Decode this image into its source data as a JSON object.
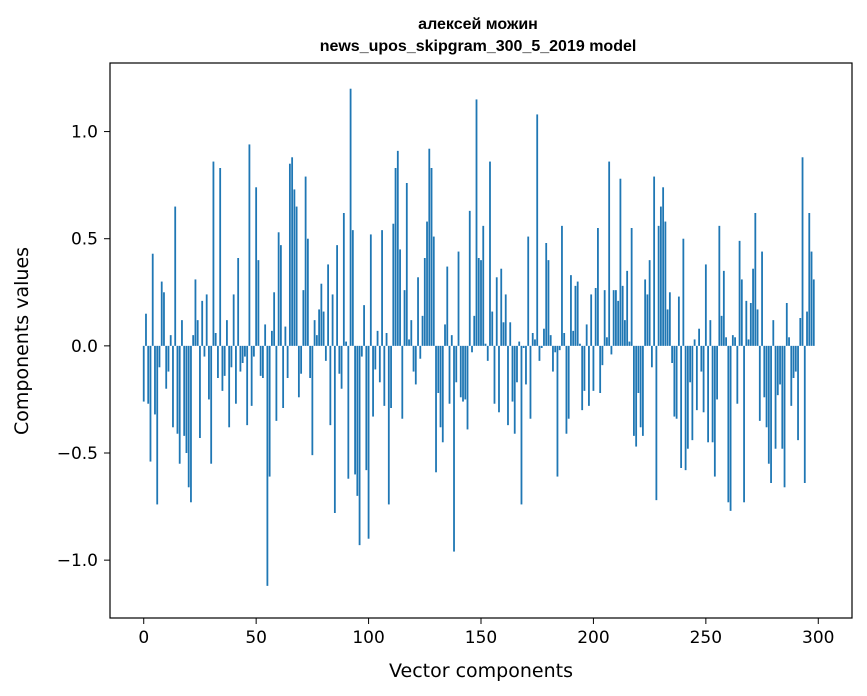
{
  "chart_data": {
    "type": "bar",
    "title": "алексей можин",
    "subtitle": "news_upos_skipgram_300_5_2019 model",
    "xlabel": "Vector components",
    "ylabel": "Components values",
    "xlim": [
      -15,
      315
    ],
    "ylim": [
      -1.27,
      1.32
    ],
    "xticks": [
      0,
      50,
      100,
      150,
      200,
      250,
      300
    ],
    "yticks": [
      -1.0,
      -0.5,
      0.0,
      0.5,
      1.0
    ],
    "bar_color": "#1f77b4",
    "grid": false,
    "x": "0..299 (index of each value)",
    "values": [
      -0.26,
      0.15,
      -0.27,
      -0.54,
      0.43,
      -0.32,
      -0.74,
      -0.1,
      0.3,
      0.25,
      -0.2,
      -0.12,
      0.05,
      -0.38,
      0.65,
      -0.41,
      -0.55,
      0.12,
      -0.42,
      -0.5,
      -0.66,
      -0.73,
      0.05,
      0.31,
      0.12,
      -0.43,
      0.21,
      -0.05,
      0.24,
      -0.25,
      -0.55,
      0.86,
      0.06,
      -0.15,
      0.83,
      -0.21,
      -0.14,
      0.12,
      -0.38,
      -0.1,
      0.24,
      -0.27,
      0.41,
      -0.12,
      -0.08,
      -0.05,
      -0.37,
      0.94,
      -0.28,
      -0.05,
      0.74,
      0.4,
      -0.14,
      -0.15,
      0.1,
      -1.12,
      -0.61,
      0.07,
      0.25,
      -0.35,
      0.53,
      0.47,
      -0.29,
      0.09,
      -0.15,
      0.85,
      0.88,
      0.73,
      0.65,
      -0.24,
      -0.13,
      0.26,
      0.79,
      0.5,
      -0.15,
      -0.51,
      0.12,
      0.05,
      0.17,
      0.29,
      0.16,
      -0.07,
      0.38,
      -0.37,
      0.24,
      -0.78,
      0.47,
      -0.13,
      -0.2,
      0.62,
      0.02,
      -0.62,
      1.2,
      0.54,
      -0.6,
      -0.7,
      -0.93,
      -0.05,
      0.19,
      -0.58,
      -0.9,
      0.52,
      -0.33,
      -0.11,
      0.07,
      -0.17,
      0.54,
      -0.28,
      0.06,
      -0.74,
      -0.29,
      0.57,
      0.83,
      0.91,
      0.45,
      -0.34,
      0.26,
      0.76,
      0.03,
      0.12,
      -0.12,
      -0.18,
      0.32,
      -0.06,
      0.14,
      0.41,
      0.58,
      0.92,
      0.83,
      0.51,
      -0.59,
      -0.22,
      -0.38,
      -0.45,
      0.1,
      0.37,
      -0.27,
      0.05,
      -0.96,
      -0.17,
      0.44,
      -0.24,
      -0.26,
      -0.25,
      -0.39,
      0.63,
      -0.03,
      0.14,
      1.15,
      0.41,
      0.4,
      0.56,
      0.01,
      -0.07,
      0.86,
      0.16,
      -0.27,
      0.32,
      -0.31,
      0.36,
      0.11,
      0.24,
      -0.37,
      0.11,
      -0.26,
      -0.41,
      -0.17,
      0.02,
      -0.74,
      -0.01,
      -0.18,
      0.51,
      -0.34,
      0.06,
      0.03,
      1.08,
      -0.07,
      -0.01,
      0.08,
      0.48,
      0.4,
      0.05,
      -0.12,
      -0.03,
      -0.61,
      -0.02,
      0.56,
      0.06,
      -0.41,
      -0.34,
      0.33,
      0.07,
      0.28,
      0.3,
      0.01,
      -0.3,
      -0.21,
      0.1,
      -0.28,
      0.24,
      -0.21,
      0.27,
      0.55,
      -0.22,
      -0.09,
      0.26,
      0.04,
      0.86,
      -0.04,
      0.26,
      0.26,
      0.21,
      0.78,
      0.28,
      0.12,
      0.35,
      0.02,
      0.55,
      -0.42,
      -0.47,
      -0.22,
      -0.38,
      -0.42,
      0.31,
      0.24,
      0.4,
      -0.1,
      0.79,
      -0.72,
      0.56,
      0.65,
      0.74,
      0.58,
      0.17,
      0.25,
      -0.08,
      -0.33,
      -0.34,
      0.23,
      -0.57,
      0.5,
      -0.58,
      -0.48,
      -0.17,
      -0.44,
      0.03,
      -0.3,
      0.08,
      -0.12,
      -0.31,
      0.38,
      -0.45,
      0.12,
      -0.45,
      -0.61,
      -0.25,
      0.56,
      0.14,
      0.35,
      0.04,
      -0.73,
      -0.77,
      0.05,
      0.04,
      -0.27,
      0.49,
      0.31,
      -0.73,
      0.21,
      0.03,
      0.2,
      0.36,
      0.62,
      0.17,
      -0.35,
      0.44,
      -0.24,
      -0.38,
      -0.55,
      -0.64,
      0.12,
      -0.48,
      -0.23,
      -0.18,
      -0.48,
      -0.66,
      0.2,
      0.04,
      -0.28,
      -0.15,
      -0.12,
      -0.44,
      0.13,
      0.88,
      -0.64,
      0.16,
      0.62,
      0.44,
      0.31
    ]
  }
}
